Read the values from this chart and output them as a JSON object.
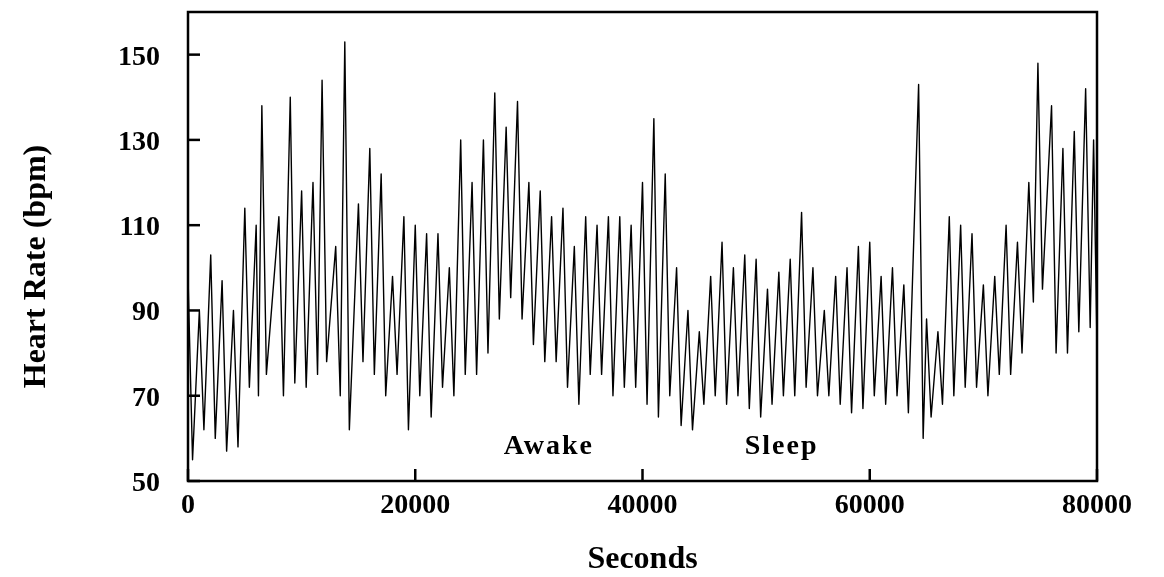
{
  "chart_data": {
    "type": "line",
    "xlabel": "Seconds",
    "ylabel": "Heart Rate (bpm)",
    "xlim": [
      0,
      80000
    ],
    "ylim": [
      50,
      160
    ],
    "xticks": [
      0,
      20000,
      40000,
      60000,
      80000
    ],
    "yticks": [
      50,
      70,
      90,
      110,
      130,
      150
    ],
    "grid": false,
    "annotations": [
      "Awake",
      "Sleep"
    ],
    "series": [
      {
        "color": "#000000",
        "x": [
          0,
          400,
          1000,
          1400,
          2000,
          2400,
          3000,
          3400,
          4000,
          4400,
          5000,
          5400,
          6000,
          6200,
          6500,
          6900,
          8000,
          8400,
          9000,
          9400,
          10000,
          10400,
          11000,
          11400,
          11800,
          12200,
          13000,
          13400,
          13800,
          14200,
          15000,
          15400,
          16000,
          16400,
          17000,
          17400,
          18000,
          18400,
          19000,
          19400,
          20000,
          20400,
          21000,
          21400,
          22000,
          22400,
          23000,
          23400,
          24000,
          24400,
          25000,
          25400,
          26000,
          26400,
          27000,
          27400,
          28000,
          28400,
          29000,
          29400,
          30000,
          30400,
          31000,
          31400,
          32000,
          32400,
          33000,
          33400,
          34000,
          34400,
          35000,
          35400,
          36000,
          36400,
          37000,
          37400,
          38000,
          38400,
          39000,
          39400,
          40000,
          40400,
          41000,
          41400,
          42000,
          42400,
          43000,
          43400,
          44000,
          44400,
          45000,
          45400,
          46000,
          46400,
          47000,
          47400,
          48000,
          48400,
          49000,
          49400,
          50000,
          50400,
          51000,
          51400,
          52000,
          52400,
          53000,
          53400,
          54000,
          54400,
          55000,
          55400,
          56000,
          56400,
          57000,
          57400,
          58000,
          58400,
          59000,
          59400,
          60000,
          60400,
          61000,
          61400,
          62000,
          62400,
          63000,
          63400,
          64300,
          64700,
          65000,
          65400,
          66000,
          66400,
          67000,
          67400,
          68000,
          68400,
          69000,
          69400,
          70000,
          70400,
          71000,
          71400,
          72000,
          72400,
          73000,
          73400,
          74000,
          74400,
          74800,
          75200,
          76000,
          76400,
          77000,
          77400,
          78000,
          78400,
          79000,
          79400,
          79700,
          80000
        ],
        "values": [
          98,
          55,
          90,
          62,
          103,
          60,
          97,
          57,
          90,
          58,
          114,
          72,
          110,
          70,
          138,
          75,
          112,
          70,
          140,
          73,
          118,
          72,
          120,
          75,
          144,
          78,
          105,
          70,
          153,
          62,
          115,
          78,
          128,
          75,
          122,
          70,
          98,
          75,
          112,
          62,
          110,
          70,
          108,
          65,
          108,
          72,
          100,
          70,
          130,
          75,
          120,
          75,
          130,
          80,
          141,
          88,
          133,
          93,
          139,
          88,
          120,
          82,
          118,
          78,
          112,
          78,
          114,
          72,
          105,
          68,
          112,
          75,
          110,
          75,
          112,
          70,
          112,
          72,
          110,
          72,
          120,
          68,
          135,
          65,
          122,
          70,
          100,
          63,
          90,
          62,
          85,
          68,
          98,
          70,
          106,
          68,
          100,
          70,
          103,
          67,
          102,
          65,
          95,
          68,
          99,
          70,
          102,
          70,
          113,
          72,
          100,
          70,
          90,
          70,
          98,
          68,
          100,
          66,
          105,
          67,
          106,
          70,
          98,
          68,
          100,
          70,
          96,
          66,
          143,
          60,
          88,
          65,
          85,
          68,
          112,
          70,
          110,
          72,
          108,
          72,
          96,
          70,
          98,
          75,
          110,
          75,
          106,
          80,
          120,
          92,
          148,
          95,
          138,
          80,
          128,
          80,
          132,
          85,
          142,
          86,
          130,
          82
        ]
      }
    ]
  }
}
